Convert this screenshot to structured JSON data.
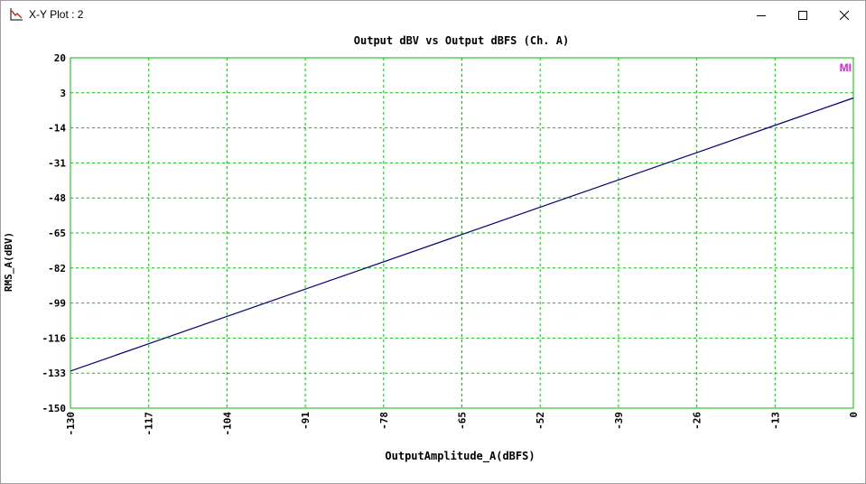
{
  "window": {
    "title": "X-Y Plot : 2",
    "controls": [
      "minimize-icon",
      "maximize-icon",
      "close-icon"
    ]
  },
  "legend_badge": "MI",
  "colors": {
    "grid": "#00cc00",
    "frame": "#00bb00",
    "series": "#00007a",
    "badge": "#e020e0",
    "text": "#000000"
  },
  "chart_data": {
    "type": "line",
    "title": "Output dBV vs Output dBFS (Ch. A)",
    "xlabel": "OutputAmplitude_A(dBFS)",
    "ylabel": "RMS_A(dBV)",
    "xlim": [
      -130,
      0
    ],
    "ylim": [
      -150,
      20
    ],
    "xticks": [
      -130,
      -117,
      -104,
      -91,
      -78,
      -65,
      -52,
      -39,
      -26,
      -13,
      0
    ],
    "yticks": [
      20,
      3,
      -14,
      -31,
      -48,
      -65,
      -82,
      -99,
      -116,
      -133,
      -150
    ],
    "xtick_labels": [
      "-130",
      "-117",
      "-104",
      "-91",
      "-78",
      "-65",
      "-52",
      "-39",
      "-26",
      "-13",
      "0"
    ],
    "ytick_labels": [
      "20",
      "3",
      "-14",
      "-31",
      "-48",
      "-65",
      "-82",
      "-99",
      "-116",
      "-133",
      "-150"
    ],
    "grid": true,
    "grid_style": "dashed",
    "series": [
      {
        "x": [
          -130,
          0
        ],
        "y": [
          -132,
          0.5
        ]
      }
    ]
  }
}
